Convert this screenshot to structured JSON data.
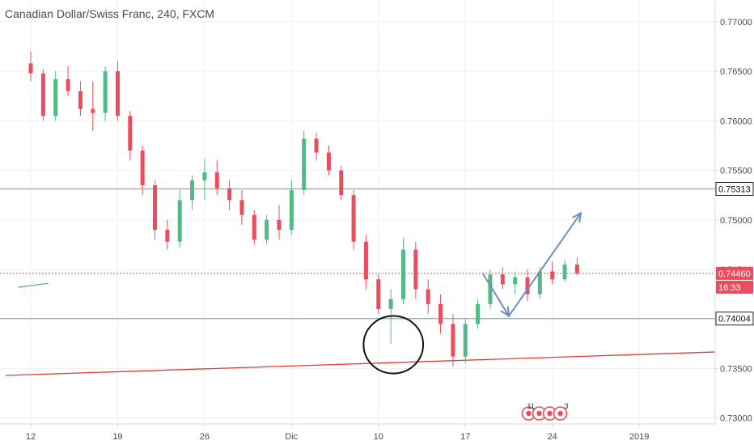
{
  "title": "Canadian Dollar/Swiss Franc, 240, FXCM",
  "colors": {
    "up": "#53b987",
    "down": "#eb4d5c",
    "hline": "#4aa8c9",
    "trend": "#e53935",
    "arrow": "#6b8fbf",
    "grid": "#eef1f4",
    "axis": "#d6d9dc",
    "text": "#4a4a4a"
  },
  "chart_data": {
    "type": "candlestick",
    "ylim": [
      0.7294,
      0.7722
    ],
    "yticks": [
      "0.77000",
      "0.76500",
      "0.76000",
      "0.75500",
      "0.75000",
      "0.74500",
      "0.74000",
      "0.73500",
      "0.73000"
    ],
    "ytick_values": [
      0.77,
      0.765,
      0.76,
      0.755,
      0.75,
      0.745,
      0.74,
      0.735,
      0.73
    ],
    "xticks": [
      "12",
      "19",
      "26",
      "Dic",
      "10",
      "17",
      "24",
      "2019"
    ],
    "xtick_index": [
      0,
      7,
      14,
      21,
      28,
      35,
      42,
      49
    ],
    "bar_count": 56,
    "candles": [
      [
        0.7658,
        0.767,
        0.764,
        0.7648
      ],
      [
        0.7648,
        0.7652,
        0.76,
        0.7605
      ],
      [
        0.7605,
        0.765,
        0.76,
        0.7642
      ],
      [
        0.7642,
        0.7655,
        0.7625,
        0.763
      ],
      [
        0.763,
        0.764,
        0.7605,
        0.7612
      ],
      [
        0.7612,
        0.764,
        0.759,
        0.7608
      ],
      [
        0.7608,
        0.7655,
        0.76,
        0.765
      ],
      [
        0.765,
        0.766,
        0.76,
        0.7605
      ],
      [
        0.7605,
        0.761,
        0.756,
        0.757
      ],
      [
        0.757,
        0.7575,
        0.7525,
        0.7535
      ],
      [
        0.7535,
        0.754,
        0.748,
        0.749
      ],
      [
        0.749,
        0.75,
        0.747,
        0.7478
      ],
      [
        0.7478,
        0.753,
        0.7472,
        0.752
      ],
      [
        0.752,
        0.7545,
        0.751,
        0.754
      ],
      [
        0.754,
        0.7562,
        0.752,
        0.7548
      ],
      [
        0.7548,
        0.756,
        0.7525,
        0.7532
      ],
      [
        0.7532,
        0.754,
        0.751,
        0.752
      ],
      [
        0.752,
        0.753,
        0.7495,
        0.7505
      ],
      [
        0.7505,
        0.751,
        0.7475,
        0.748
      ],
      [
        0.748,
        0.7505,
        0.7475,
        0.75
      ],
      [
        0.75,
        0.7515,
        0.748,
        0.749
      ],
      [
        0.749,
        0.754,
        0.7485,
        0.753
      ],
      [
        0.753,
        0.759,
        0.7525,
        0.7582
      ],
      [
        0.7582,
        0.7588,
        0.756,
        0.7568
      ],
      [
        0.7568,
        0.7575,
        0.7545,
        0.755
      ],
      [
        0.755,
        0.7555,
        0.752,
        0.7525
      ],
      [
        0.7525,
        0.753,
        0.747,
        0.7478
      ],
      [
        0.7478,
        0.7485,
        0.743,
        0.744
      ],
      [
        0.744,
        0.7445,
        0.7405,
        0.741
      ],
      [
        0.741,
        0.743,
        0.7375,
        0.742
      ],
      [
        0.742,
        0.7482,
        0.7415,
        0.747
      ],
      [
        0.747,
        0.7478,
        0.742,
        0.743
      ],
      [
        0.743,
        0.744,
        0.7405,
        0.7415
      ],
      [
        0.7415,
        0.7425,
        0.7385,
        0.7395
      ],
      [
        0.7395,
        0.7405,
        0.7352,
        0.7362
      ],
      [
        0.7362,
        0.74,
        0.7355,
        0.7395
      ],
      [
        0.7395,
        0.742,
        0.739,
        0.7415
      ],
      [
        0.7415,
        0.745,
        0.741,
        0.7445
      ],
      [
        0.7445,
        0.7452,
        0.743,
        0.7435
      ],
      [
        0.7435,
        0.7448,
        0.7425,
        0.7442
      ],
      [
        0.7442,
        0.745,
        0.7418,
        0.7425
      ],
      [
        0.7425,
        0.7452,
        0.742,
        0.7448
      ],
      [
        0.7448,
        0.7458,
        0.7435,
        0.744
      ],
      [
        0.744,
        0.746,
        0.7438,
        0.7455
      ],
      [
        0.7455,
        0.7462,
        0.7444,
        0.7446
      ]
    ],
    "hlines": [
      {
        "value": 0.75313,
        "label": "0.75313"
      },
      {
        "value": 0.74004,
        "label": "0.74004"
      }
    ],
    "last_price": {
      "value": 0.7446,
      "label": "0.74460",
      "countdown": "16:33"
    },
    "trendline": {
      "from_index": -2.0,
      "from_value": 0.7343,
      "to_index": 55.9,
      "to_value": 0.7367
    },
    "projection": [
      {
        "index": 36.4,
        "value": 0.7446
      },
      {
        "index": 38.5,
        "value": 0.7403
      },
      {
        "index": 44.3,
        "value": 0.7507
      }
    ],
    "stray_line": {
      "from_index": -1.0,
      "from_value": 0.7432,
      "to_index": 1.4,
      "to_value": 0.7436
    },
    "circle": {
      "center_index": 29.2,
      "center_value": 0.7374,
      "rx_bars": 2.4,
      "ry_value": 0.0029
    },
    "events": {
      "count_left": "11",
      "count_right": "3",
      "index": 40.1
    }
  }
}
